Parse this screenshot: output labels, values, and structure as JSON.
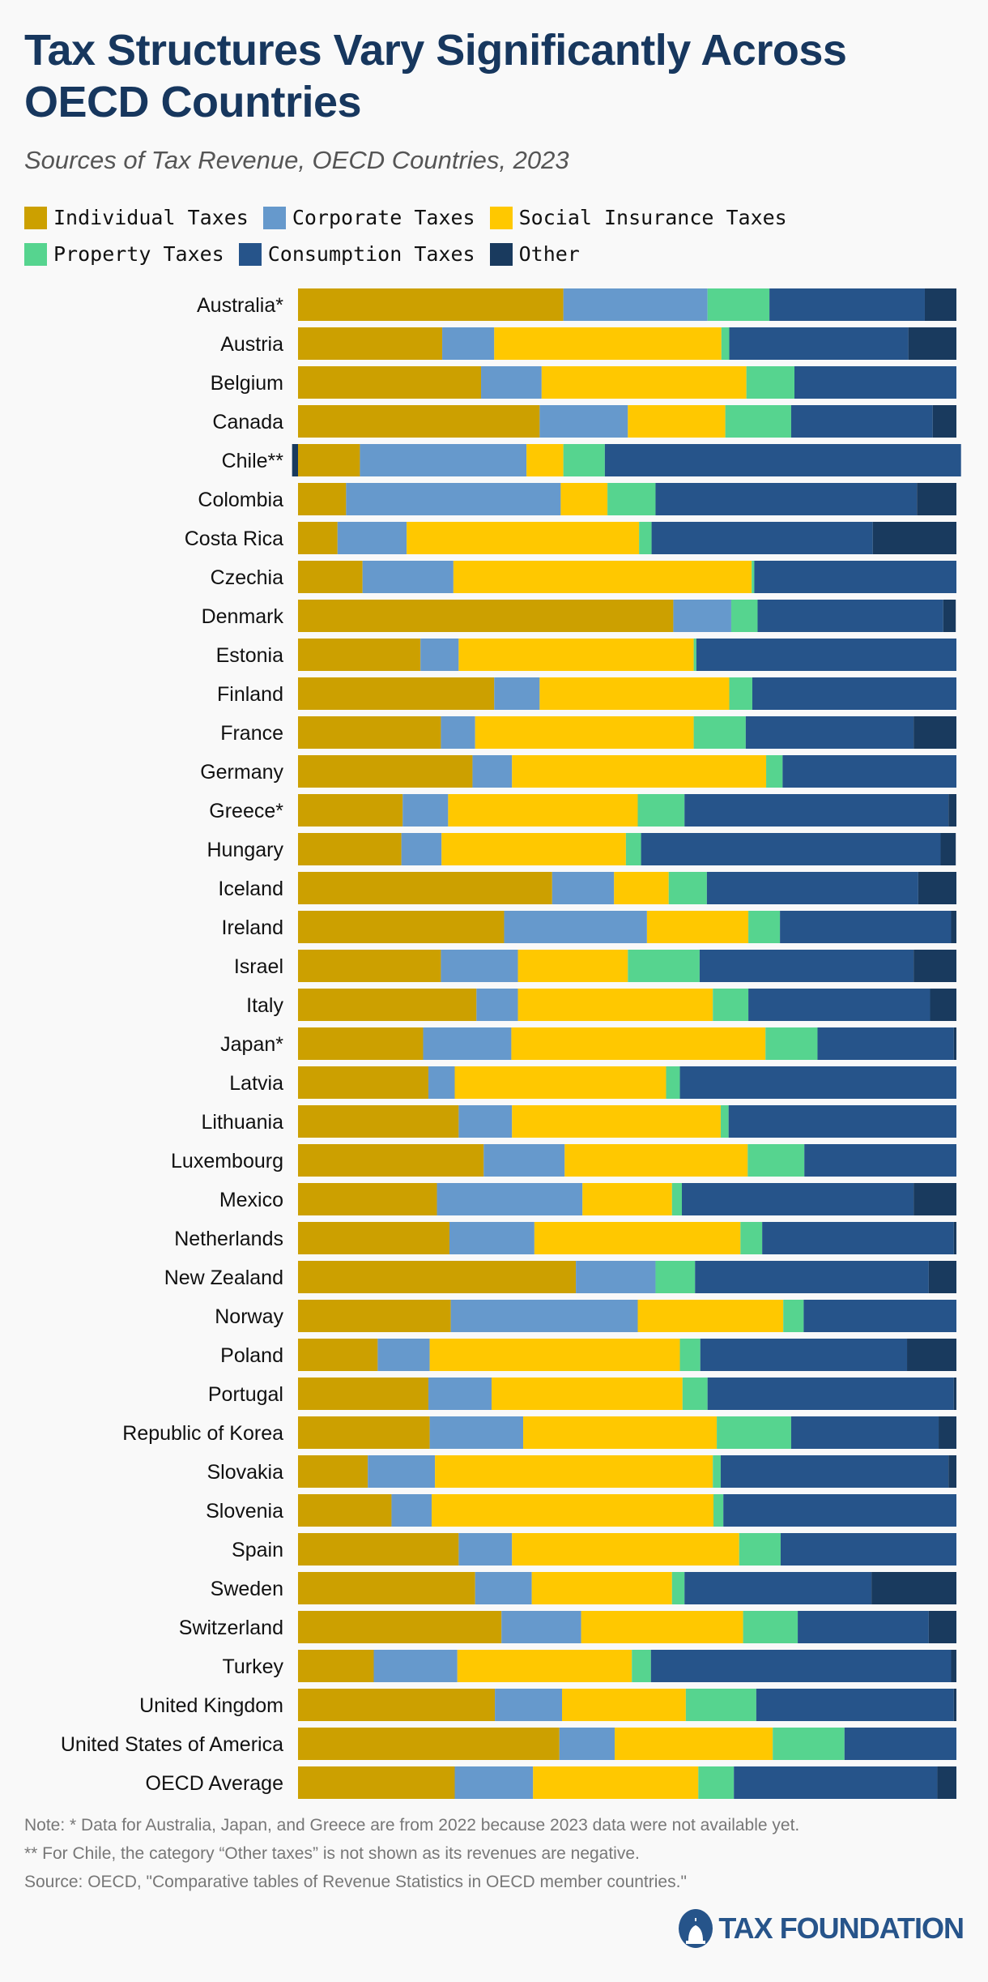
{
  "title": "Tax Structures Vary Significantly Across OECD Countries",
  "subtitle": "Sources of Tax Revenue, OECD Countries, 2023",
  "chart_data": {
    "type": "bar",
    "orientation": "horizontal",
    "stacked": "100%",
    "xlim": [
      0,
      100
    ],
    "grid": false,
    "legend_placement": "top-left",
    "series_names": [
      "Individual Taxes",
      "Corporate Taxes",
      "Social Insurance Taxes",
      "Property Taxes",
      "Consumption Taxes",
      "Other"
    ],
    "colors": [
      "#cca000",
      "#6699cc",
      "#ffc800",
      "#56d48f",
      "#26548a",
      "#193a5e"
    ],
    "categories": [
      "Australia*",
      "Austria",
      "Belgium",
      "Canada",
      "Chile**",
      "Colombia",
      "Costa Rica",
      "Czechia",
      "Denmark",
      "Estonia",
      "Finland",
      "France",
      "Germany",
      "Greece*",
      "Hungary",
      "Iceland",
      "Ireland",
      "Israel",
      "Italy",
      "Japan*",
      "Latvia",
      "Lithuania",
      "Luxembourg",
      "Mexico",
      "Netherlands",
      "New Zealand",
      "Norway",
      "Poland",
      "Portugal",
      "Republic of Korea",
      "Slovakia",
      "Slovenia",
      "Spain",
      "Sweden",
      "Switzerland",
      "Turkey",
      "United Kingdom",
      "United States of America",
      "OECD Average"
    ],
    "values": [
      [
        40.3,
        21.9,
        0,
        9.4,
        23.6,
        4.8
      ],
      [
        21.9,
        7.9,
        34.5,
        1.2,
        27.2,
        7.3
      ],
      [
        27.8,
        9.2,
        31.1,
        7.3,
        24.6,
        0
      ],
      [
        36.7,
        13.4,
        14.8,
        10.0,
        21.5,
        3.6
      ],
      [
        9.4,
        25.3,
        5.6,
        6.3,
        54.1,
        -0.9
      ],
      [
        7.3,
        32.6,
        7.1,
        7.3,
        39.7,
        6.0
      ],
      [
        6.0,
        10.5,
        35.3,
        1.9,
        33.6,
        12.7
      ],
      [
        9.8,
        13.8,
        45.3,
        0.4,
        30.7,
        0
      ],
      [
        57.0,
        8.8,
        0,
        4.0,
        28.2,
        1.9
      ],
      [
        18.6,
        5.8,
        35.7,
        0.4,
        39.5,
        0
      ],
      [
        29.8,
        6.9,
        28.8,
        3.5,
        31.0,
        0
      ],
      [
        21.7,
        5.2,
        33.2,
        7.9,
        25.5,
        6.5
      ],
      [
        26.5,
        6.0,
        38.6,
        2.5,
        26.4,
        0
      ],
      [
        15.9,
        6.9,
        28.8,
        7.1,
        40.1,
        1.2
      ],
      [
        15.7,
        6.1,
        28.0,
        2.3,
        45.5,
        2.3
      ],
      [
        38.6,
        9.4,
        8.3,
        5.8,
        32.1,
        5.8
      ],
      [
        31.3,
        21.7,
        15.4,
        4.8,
        26.0,
        0.8
      ],
      [
        21.7,
        11.7,
        16.7,
        10.9,
        32.5,
        6.5
      ],
      [
        27.1,
        6.3,
        29.6,
        5.4,
        27.6,
        4.0
      ],
      [
        19.0,
        13.4,
        38.6,
        7.9,
        20.7,
        0.4
      ],
      [
        19.8,
        4.0,
        32.1,
        2.1,
        42.0,
        0
      ],
      [
        24.4,
        8.1,
        31.7,
        1.2,
        34.6,
        0
      ],
      [
        28.2,
        12.3,
        27.8,
        8.6,
        23.1,
        0
      ],
      [
        21.1,
        22.1,
        13.6,
        1.5,
        35.2,
        6.5
      ],
      [
        23.0,
        12.9,
        31.3,
        3.3,
        29.1,
        0.4
      ],
      [
        42.2,
        12.1,
        0,
        6.0,
        35.5,
        4.2
      ],
      [
        23.2,
        28.4,
        22.1,
        3.1,
        23.2,
        0
      ],
      [
        12.1,
        7.9,
        38.0,
        3.1,
        31.4,
        7.5
      ],
      [
        19.8,
        9.6,
        29.0,
        3.8,
        37.4,
        0.4
      ],
      [
        20.0,
        14.2,
        29.4,
        11.3,
        22.4,
        2.7
      ],
      [
        10.6,
        10.2,
        42.2,
        1.2,
        34.6,
        1.2
      ],
      [
        14.2,
        6.1,
        42.8,
        1.5,
        35.4,
        0
      ],
      [
        24.4,
        8.1,
        34.5,
        6.3,
        26.7,
        0
      ],
      [
        26.9,
        8.6,
        21.3,
        1.9,
        28.4,
        12.9
      ],
      [
        30.9,
        12.1,
        24.6,
        8.3,
        19.9,
        4.2
      ],
      [
        11.5,
        12.7,
        26.5,
        2.9,
        45.6,
        0.8
      ],
      [
        29.9,
        10.2,
        18.8,
        10.7,
        30.0,
        0.4
      ],
      [
        39.7,
        8.4,
        24.0,
        10.9,
        17.0,
        0
      ],
      [
        23.8,
        11.9,
        25.1,
        5.4,
        30.9,
        2.9
      ]
    ]
  },
  "notes": [
    "Note: * Data for Australia, Japan, and Greece are from 2022 because 2023 data were not available yet.",
    "** For Chile, the category “Other taxes” is not shown as its revenues are negative.",
    "Source: OECD, \"Comparative tables of Revenue Statistics in OECD member countries.\""
  ],
  "logo": {
    "text": "TAX FOUNDATION",
    "icon": "capitol-dome-icon"
  }
}
